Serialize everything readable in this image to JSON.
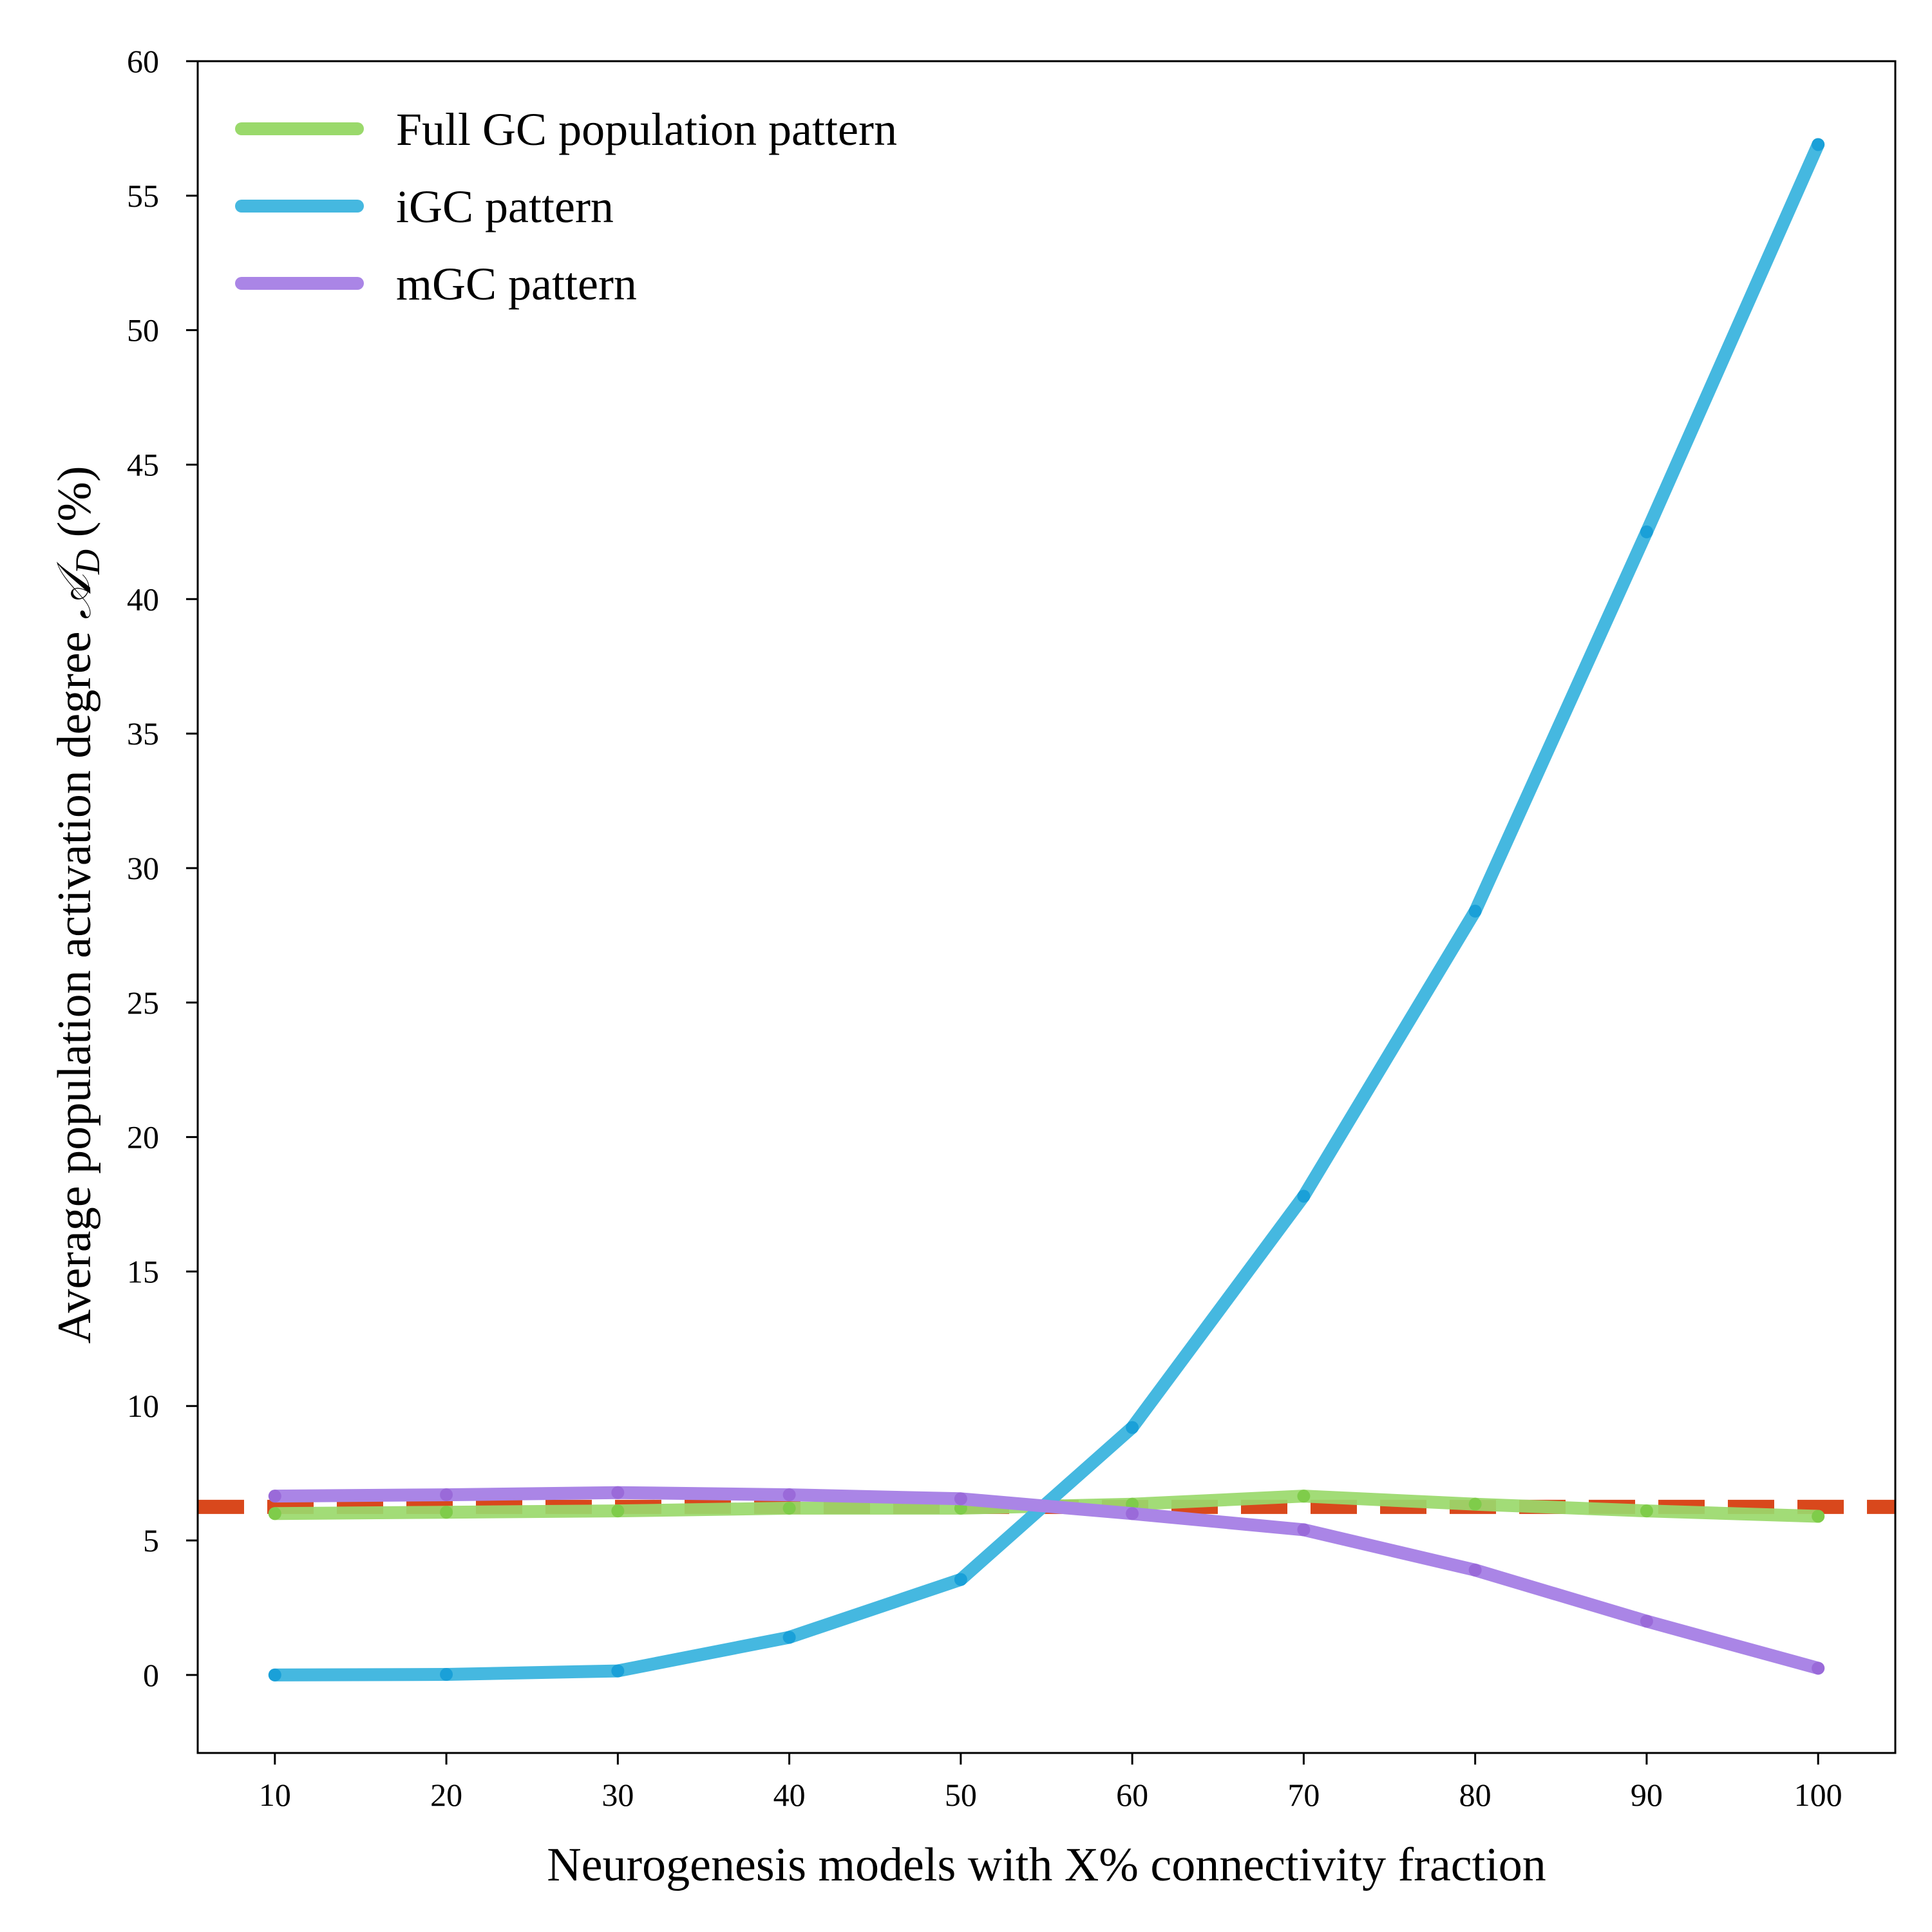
{
  "chart_data": {
    "type": "line",
    "xlabel": "Neurogenesis models with X% connectivity fraction",
    "ylabel": "Average population activation degree ",
    "ylabel_math": "𝒜",
    "ylabel_sub": "D",
    "ylabel_tail": " (%)",
    "x": [
      10,
      20,
      30,
      40,
      50,
      60,
      70,
      80,
      90,
      100
    ],
    "xlim": [
      5.5,
      104.5
    ],
    "ylim": [
      -2.9,
      60
    ],
    "xticks": [
      10,
      20,
      30,
      40,
      50,
      60,
      70,
      80,
      90,
      100
    ],
    "yticks": [
      0,
      5,
      10,
      15,
      20,
      25,
      30,
      35,
      40,
      45,
      50,
      55,
      60
    ],
    "grid": false,
    "legend_position": "top-left",
    "reference_line": {
      "y": 6.25,
      "style": "dashed",
      "color": "#d9481c"
    },
    "series": [
      {
        "name": "Full GC population pattern",
        "color": "#9ad96b",
        "marker_color": "#7fcc4a",
        "values": [
          6.0,
          6.05,
          6.1,
          6.2,
          6.2,
          6.35,
          6.65,
          6.35,
          6.1,
          5.9
        ]
      },
      {
        "name": "iGC pattern",
        "color": "#45b8e0",
        "marker_color": "#1aa0d8",
        "values": [
          0.0,
          0.02,
          0.15,
          1.4,
          3.55,
          9.2,
          17.8,
          28.4,
          42.5,
          56.9
        ]
      },
      {
        "name": "mGC pattern",
        "color": "#aa85e6",
        "marker_color": "#9a6ad9",
        "values": [
          6.65,
          6.7,
          6.78,
          6.7,
          6.55,
          6.0,
          5.4,
          3.9,
          2.0,
          0.25
        ]
      }
    ]
  }
}
